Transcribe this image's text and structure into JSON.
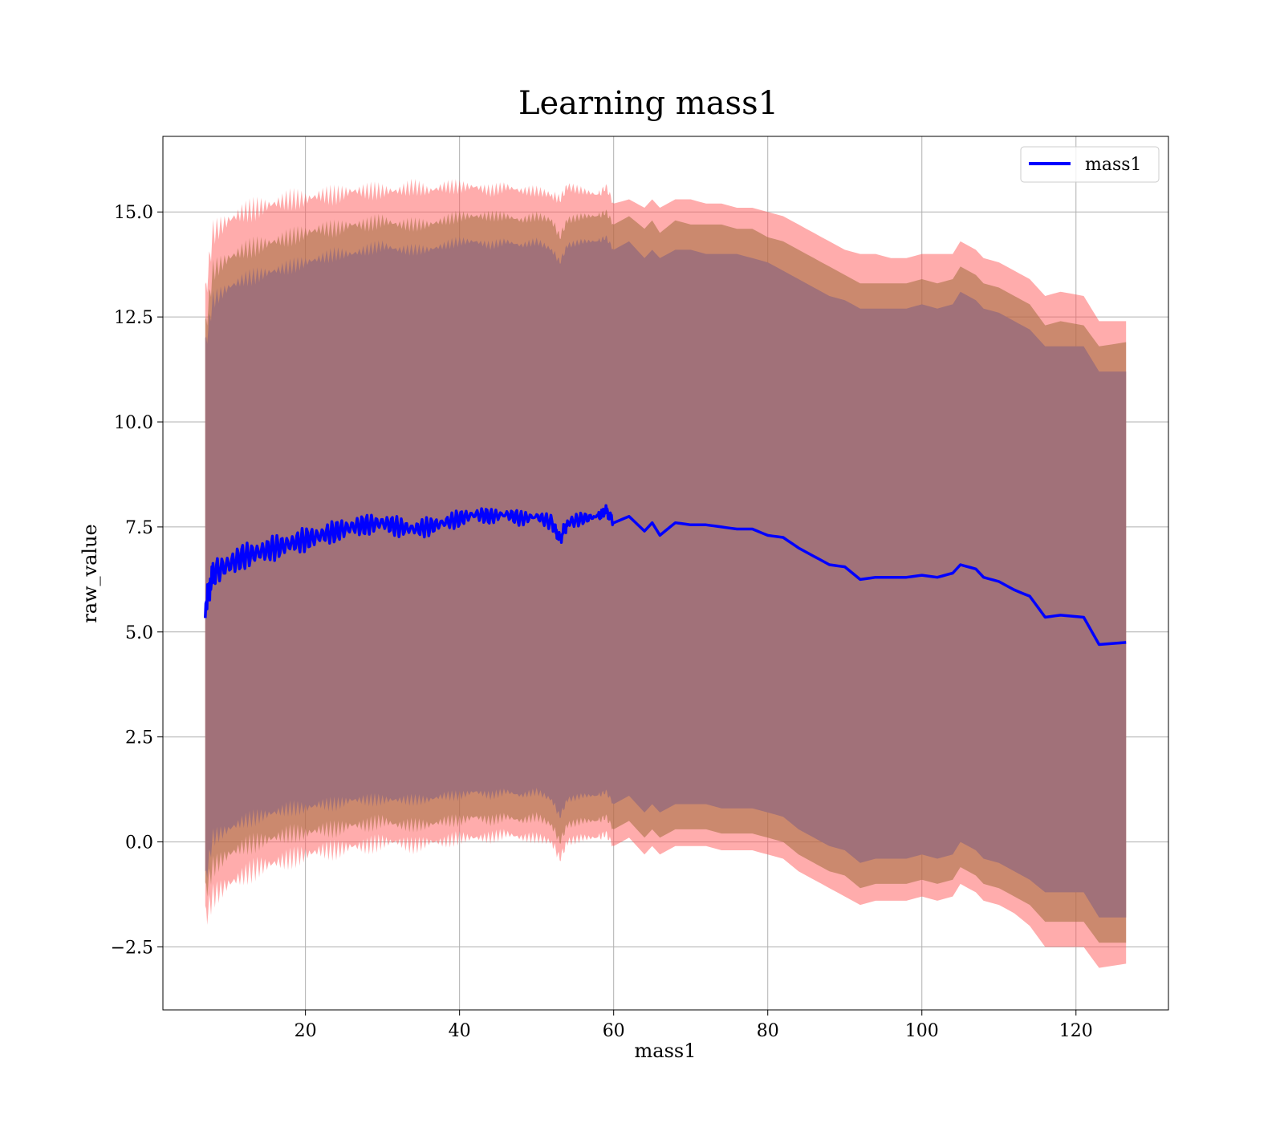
{
  "chart_data": {
    "type": "line",
    "title": "Learning mass1",
    "xlabel": "mass1",
    "ylabel": "raw_value",
    "xlim": [
      1.5,
      132
    ],
    "ylim": [
      -4,
      16.8
    ],
    "xticks": [
      20,
      40,
      60,
      80,
      100,
      120
    ],
    "xtick_labels": [
      "20",
      "40",
      "60",
      "80",
      "100",
      "120"
    ],
    "yticks": [
      -2.5,
      0.0,
      2.5,
      5.0,
      7.5,
      10.0,
      12.5,
      15.0
    ],
    "ytick_labels": [
      "−2.5",
      "0.0",
      "2.5",
      "5.0",
      "7.5",
      "10.0",
      "12.5",
      "15.0"
    ],
    "grid": true,
    "legend": {
      "position": "upper-right",
      "entries": [
        "mass1"
      ]
    },
    "colors": {
      "line": "#0000ff",
      "band_outer": "#ff0000",
      "band_inner": "#8b6914",
      "band_core": "#7a4a9a"
    },
    "x": [
      7,
      8,
      10,
      12,
      14,
      16,
      18,
      20,
      22,
      24,
      26,
      28,
      30,
      32,
      34,
      36,
      38,
      40,
      42,
      44,
      46,
      48,
      50,
      52,
      53,
      54,
      56,
      58,
      59,
      60,
      62,
      64,
      65,
      66,
      68,
      70,
      72,
      74,
      76,
      78,
      80,
      82,
      84,
      86,
      88,
      90,
      92,
      94,
      96,
      98,
      100,
      102,
      104,
      105,
      107,
      108,
      110,
      112,
      114,
      116,
      118,
      121,
      123,
      126.5
    ],
    "series": [
      {
        "name": "mass1",
        "role": "line",
        "values": [
          5.6,
          6.4,
          6.6,
          6.8,
          6.9,
          7.0,
          7.1,
          7.2,
          7.3,
          7.4,
          7.5,
          7.55,
          7.6,
          7.5,
          7.45,
          7.5,
          7.6,
          7.7,
          7.8,
          7.75,
          7.8,
          7.7,
          7.75,
          7.6,
          7.2,
          7.6,
          7.7,
          7.75,
          7.9,
          7.6,
          7.75,
          7.4,
          7.6,
          7.3,
          7.6,
          7.55,
          7.55,
          7.5,
          7.45,
          7.45,
          7.3,
          7.25,
          7.0,
          6.8,
          6.6,
          6.55,
          6.25,
          6.3,
          6.3,
          6.3,
          6.35,
          6.3,
          6.4,
          6.6,
          6.5,
          6.3,
          6.2,
          6.0,
          5.85,
          5.35,
          5.4,
          5.35,
          4.7,
          4.75
        ]
      },
      {
        "name": "",
        "role": "band-outer-upper",
        "values": [
          13.0,
          14.5,
          14.8,
          15.0,
          15.1,
          15.2,
          15.3,
          15.3,
          15.4,
          15.4,
          15.5,
          15.5,
          15.5,
          15.5,
          15.6,
          15.5,
          15.6,
          15.6,
          15.6,
          15.5,
          15.6,
          15.5,
          15.5,
          15.4,
          15.3,
          15.6,
          15.5,
          15.4,
          15.6,
          15.2,
          15.3,
          15.1,
          15.3,
          15.1,
          15.3,
          15.3,
          15.2,
          15.2,
          15.1,
          15.1,
          15.0,
          14.9,
          14.7,
          14.5,
          14.3,
          14.1,
          14.0,
          14.0,
          13.9,
          13.9,
          14.0,
          14.0,
          14.0,
          14.3,
          14.1,
          13.9,
          13.8,
          13.6,
          13.4,
          13.0,
          13.1,
          13.0,
          12.4,
          12.4
        ]
      },
      {
        "name": "",
        "role": "band-inner-upper",
        "values": [
          12.2,
          13.6,
          13.9,
          14.1,
          14.2,
          14.3,
          14.4,
          14.5,
          14.6,
          14.6,
          14.7,
          14.7,
          14.8,
          14.7,
          14.7,
          14.7,
          14.8,
          14.9,
          14.9,
          14.9,
          14.9,
          14.8,
          14.9,
          14.8,
          14.4,
          14.8,
          14.9,
          14.9,
          15.0,
          14.7,
          14.9,
          14.6,
          14.8,
          14.5,
          14.8,
          14.7,
          14.7,
          14.7,
          14.6,
          14.6,
          14.4,
          14.3,
          14.1,
          13.9,
          13.7,
          13.5,
          13.3,
          13.3,
          13.3,
          13.3,
          13.4,
          13.3,
          13.4,
          13.7,
          13.5,
          13.3,
          13.2,
          13.0,
          12.8,
          12.3,
          12.4,
          12.3,
          11.8,
          11.9
        ]
      },
      {
        "name": "",
        "role": "band-core-upper",
        "values": [
          11.8,
          12.9,
          13.2,
          13.4,
          13.5,
          13.6,
          13.7,
          13.8,
          13.9,
          14.0,
          14.0,
          14.1,
          14.2,
          14.1,
          14.1,
          14.1,
          14.2,
          14.3,
          14.3,
          14.2,
          14.3,
          14.2,
          14.3,
          14.1,
          13.8,
          14.2,
          14.3,
          14.3,
          14.4,
          14.1,
          14.3,
          13.9,
          14.1,
          13.9,
          14.1,
          14.1,
          14.0,
          14.0,
          14.0,
          13.9,
          13.8,
          13.6,
          13.4,
          13.2,
          13.0,
          12.9,
          12.7,
          12.7,
          12.7,
          12.7,
          12.8,
          12.7,
          12.8,
          13.1,
          12.9,
          12.7,
          12.6,
          12.4,
          12.2,
          11.8,
          11.8,
          11.8,
          11.2,
          11.2
        ]
      },
      {
        "name": "",
        "role": "band-core-lower",
        "values": [
          -0.9,
          0.1,
          0.3,
          0.5,
          0.6,
          0.7,
          0.8,
          0.8,
          0.9,
          0.9,
          1.0,
          1.0,
          1.0,
          1.0,
          1.0,
          1.0,
          1.1,
          1.1,
          1.2,
          1.1,
          1.2,
          1.1,
          1.2,
          1.0,
          0.6,
          1.0,
          1.1,
          1.1,
          1.2,
          0.9,
          1.1,
          0.7,
          0.9,
          0.7,
          0.9,
          0.9,
          0.9,
          0.8,
          0.8,
          0.8,
          0.7,
          0.6,
          0.3,
          0.1,
          -0.1,
          -0.2,
          -0.5,
          -0.4,
          -0.4,
          -0.4,
          -0.3,
          -0.4,
          -0.3,
          0.0,
          -0.2,
          -0.4,
          -0.5,
          -0.7,
          -0.9,
          -1.2,
          -1.2,
          -1.2,
          -1.8,
          -1.8
        ]
      },
      {
        "name": "",
        "role": "band-inner-lower",
        "values": [
          -1.2,
          -0.6,
          -0.3,
          -0.1,
          0.0,
          0.1,
          0.2,
          0.2,
          0.3,
          0.3,
          0.4,
          0.4,
          0.5,
          0.4,
          0.4,
          0.4,
          0.5,
          0.5,
          0.6,
          0.5,
          0.6,
          0.5,
          0.6,
          0.4,
          0.0,
          0.4,
          0.5,
          0.5,
          0.6,
          0.3,
          0.5,
          0.1,
          0.3,
          0.1,
          0.3,
          0.3,
          0.3,
          0.2,
          0.2,
          0.2,
          0.1,
          0.0,
          -0.3,
          -0.5,
          -0.7,
          -0.8,
          -1.1,
          -1.0,
          -1.0,
          -1.0,
          -0.9,
          -1.0,
          -0.9,
          -0.6,
          -0.8,
          -1.0,
          -1.1,
          -1.3,
          -1.5,
          -1.9,
          -1.9,
          -1.9,
          -2.4,
          -2.4
        ]
      },
      {
        "name": "",
        "role": "band-outer-lower",
        "values": [
          -1.8,
          -1.3,
          -1.0,
          -0.8,
          -0.6,
          -0.5,
          -0.4,
          -0.3,
          -0.2,
          -0.2,
          -0.1,
          -0.1,
          0.0,
          0.0,
          -0.1,
          0.0,
          0.0,
          0.1,
          0.1,
          0.1,
          0.2,
          0.1,
          0.1,
          0.0,
          -0.4,
          0.0,
          0.1,
          0.1,
          0.2,
          -0.1,
          0.1,
          -0.3,
          -0.1,
          -0.3,
          -0.1,
          -0.1,
          -0.1,
          -0.2,
          -0.2,
          -0.2,
          -0.3,
          -0.4,
          -0.7,
          -0.9,
          -1.1,
          -1.3,
          -1.5,
          -1.4,
          -1.4,
          -1.4,
          -1.3,
          -1.4,
          -1.3,
          -1.0,
          -1.2,
          -1.4,
          -1.5,
          -1.7,
          -2.0,
          -2.5,
          -2.5,
          -2.5,
          -3.0,
          -2.9
        ]
      }
    ]
  }
}
